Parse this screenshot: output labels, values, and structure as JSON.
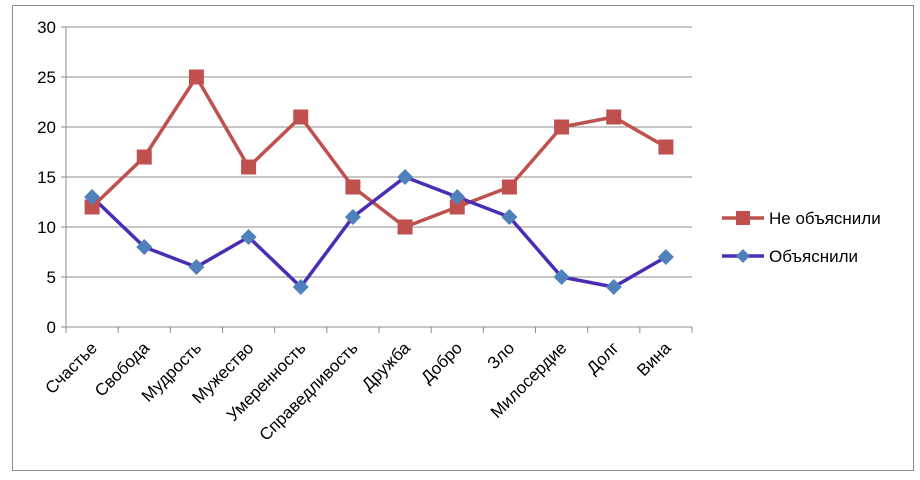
{
  "chart_data": {
    "type": "line",
    "categories": [
      "Счастье",
      "Свобода",
      "Мудрость",
      "Мужество",
      "Умеренность",
      "Справедливость",
      "Дружба",
      "Добро",
      "Зло",
      "Милосердие",
      "Долг",
      "Вина"
    ],
    "series": [
      {
        "name": "Не объяснили",
        "color": "#c0504d",
        "marker": "square",
        "values": [
          12,
          17,
          25,
          16,
          21,
          14,
          10,
          12,
          14,
          20,
          21,
          18
        ]
      },
      {
        "name": "Объяснили",
        "color": "#4b2db5",
        "marker_color": "#4f81bd",
        "marker": "diamond",
        "values": [
          13,
          8,
          6,
          9,
          4,
          11,
          15,
          13,
          11,
          5,
          4,
          7
        ]
      }
    ],
    "ylim": [
      0,
      30
    ],
    "yticks": [
      0,
      5,
      10,
      15,
      20,
      25,
      30
    ],
    "grid": true,
    "legend": "right"
  }
}
